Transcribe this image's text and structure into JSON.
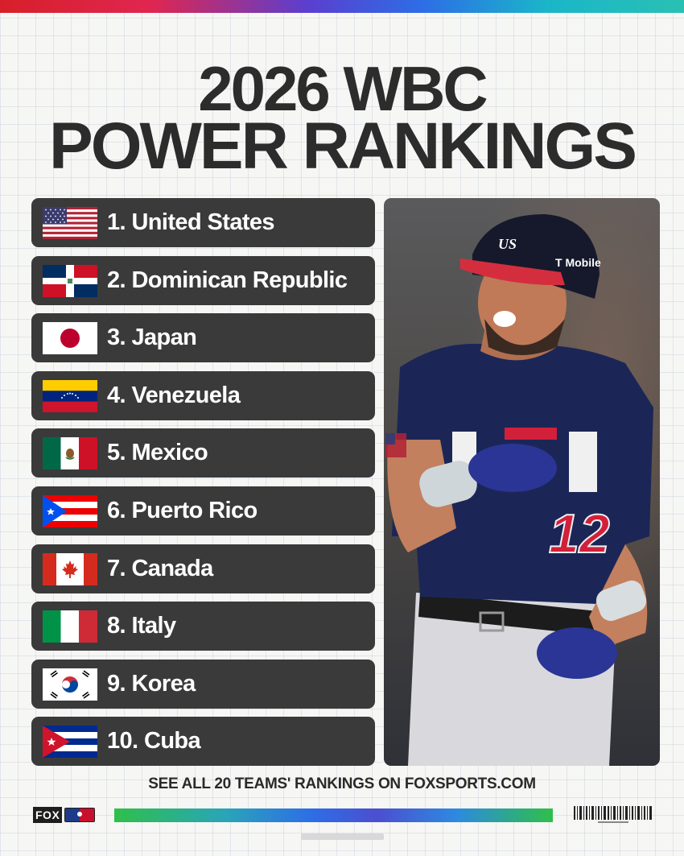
{
  "header": {
    "line1": "2026 WBC",
    "line2": "POWER RANKINGS"
  },
  "rankings": [
    {
      "label": "1. United States",
      "flag": "usa-flag"
    },
    {
      "label": "2. Dominican Republic",
      "flag": "dominican-republic-flag"
    },
    {
      "label": "3. Japan",
      "flag": "japan-flag"
    },
    {
      "label": "4. Venezuela",
      "flag": "venezuela-flag"
    },
    {
      "label": "5. Mexico",
      "flag": "mexico-flag"
    },
    {
      "label": "6. Puerto Rico",
      "flag": "puerto-rico-flag"
    },
    {
      "label": "7. Canada",
      "flag": "canada-flag"
    },
    {
      "label": "8. Italy",
      "flag": "italy-flag"
    },
    {
      "label": "9. Korea",
      "flag": "korea-flag"
    },
    {
      "label": "10. Cuba",
      "flag": "cuba-flag"
    }
  ],
  "photo": {
    "jersey_number": "12",
    "helmet_sponsor": "T Mobile",
    "helmet_logo": "US"
  },
  "footer": {
    "cta": "SEE ALL 20 TEAMS' RANKINGS ON FOXSPORTS.COM",
    "brand": "FOX"
  },
  "colors": {
    "row_bg": "#3a3a3a",
    "title": "#2c2c2c",
    "accent_red": "#d71f2a",
    "accent_blue": "#2d6ee6"
  }
}
